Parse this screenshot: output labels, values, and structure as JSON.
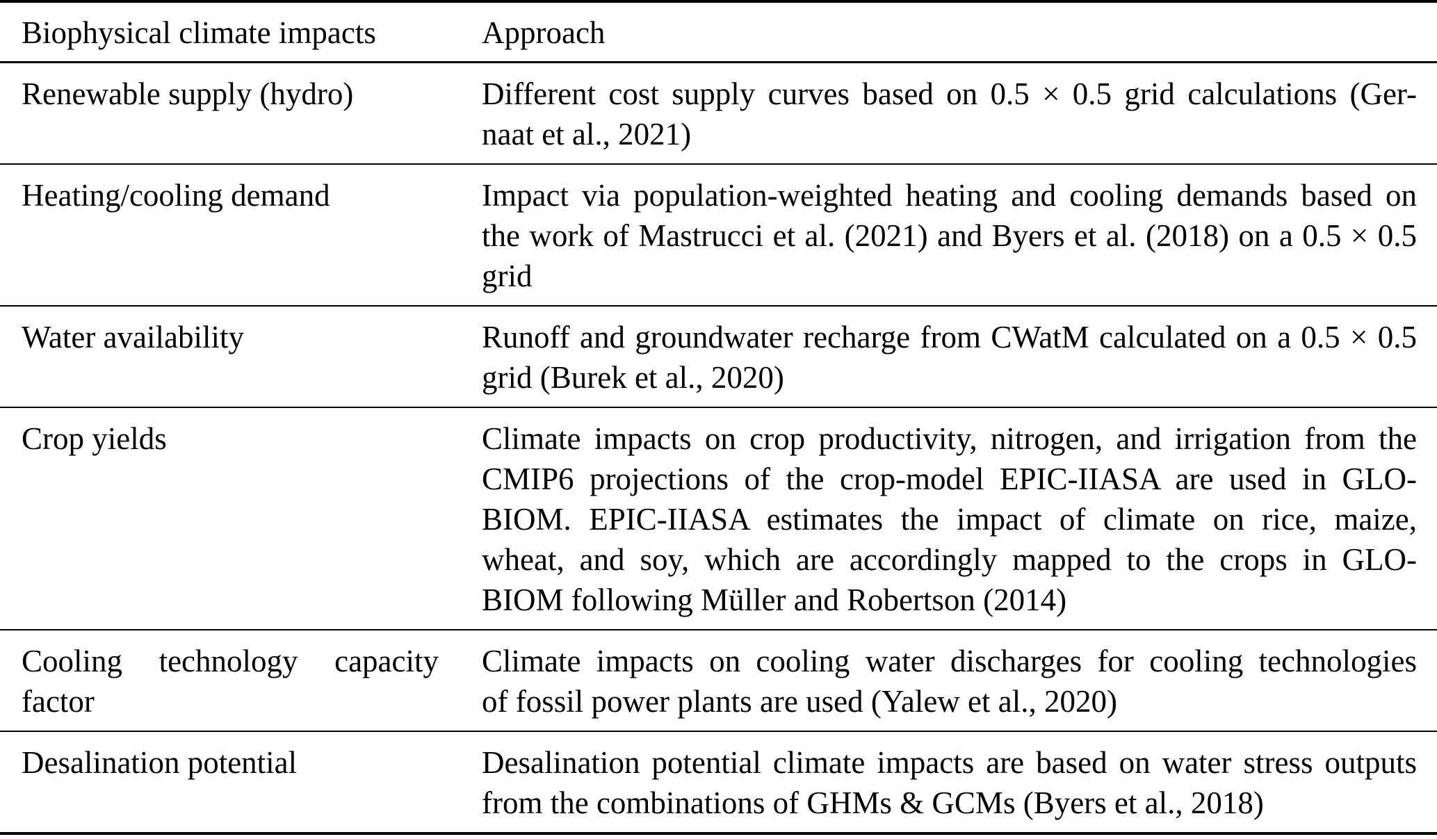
{
  "table": {
    "header": {
      "impact": "Biophysical climate impacts",
      "approach": "Approach"
    },
    "rows": [
      {
        "impact": [
          "Renewable supply (hydro)"
        ],
        "approach": [
          "Different cost supply curves based on 0.5 × 0.5 grid calculations (Ger-",
          "naat et al., 2021)"
        ]
      },
      {
        "impact": [
          "Heating/cooling demand"
        ],
        "approach": [
          "Impact via population-weighted heating and cooling demands based on",
          "the work of Mastrucci et al. (2021) and Byers et al. (2018) on a 0.5 × 0.5",
          "grid"
        ]
      },
      {
        "impact": [
          "Water availability"
        ],
        "approach": [
          "Runoff and groundwater recharge from CWatM calculated on a 0.5 × 0.5",
          "grid (Burek et al., 2020)"
        ]
      },
      {
        "impact": [
          "Crop yields"
        ],
        "approach": [
          "Climate impacts on crop productivity, nitrogen, and irrigation from the",
          "CMIP6 projections of the crop-model EPIC-IIASA are used in GLO-",
          "BIOM. EPIC-IIASA estimates the impact of climate on rice, maize,",
          "wheat, and soy, which are accordingly mapped to the crops in GLO-",
          "BIOM following Müller and Robertson (2014)"
        ]
      },
      {
        "impact": [
          "Cooling technology capacity",
          "factor"
        ],
        "approach": [
          "Climate impacts on cooling water discharges for cooling technologies",
          "of fossil power plants are used (Yalew et al., 2020)"
        ]
      },
      {
        "impact": [
          "Desalination potential"
        ],
        "approach": [
          "Desalination potential climate impacts are based on water stress outputs",
          "from the combinations of GHMs & GCMs (Byers et al., 2018)"
        ]
      }
    ]
  },
  "colors": {
    "text": "#000000",
    "rule": "#000000",
    "background": "#ffffff"
  }
}
